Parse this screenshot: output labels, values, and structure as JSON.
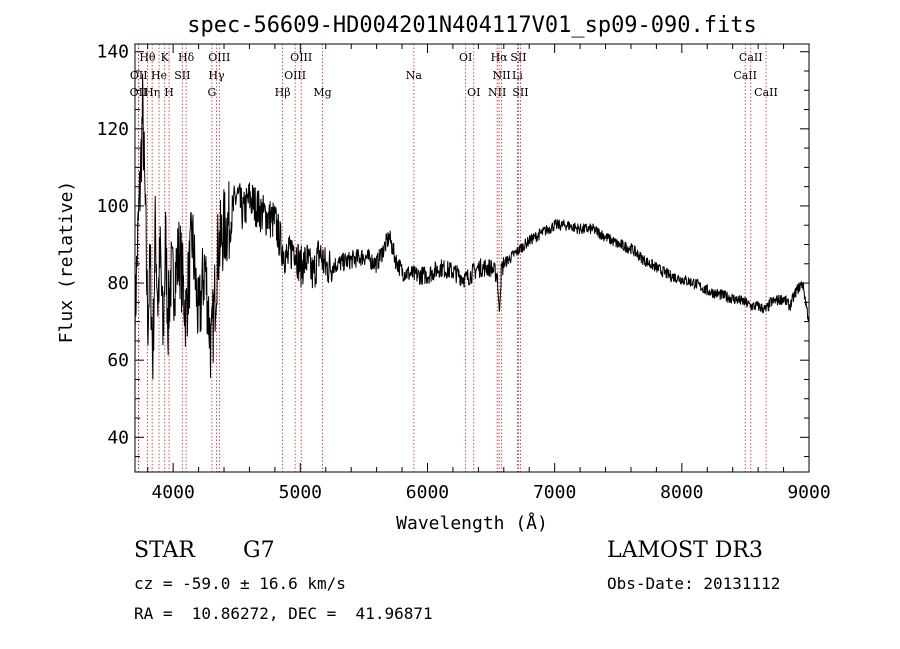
{
  "chart_data": {
    "type": "line",
    "title": "spec-56609-HD004201N404117V01_sp09-090.fits",
    "xlabel": "Wavelength (Å)",
    "ylabel": "Flux (relative)",
    "xlim": [
      3700,
      9000
    ],
    "ylim": [
      31,
      142
    ],
    "xticks": [
      4000,
      5000,
      6000,
      7000,
      8000,
      9000
    ],
    "yticks": [
      40,
      60,
      80,
      100,
      120,
      140
    ],
    "series": [
      {
        "name": "flux",
        "x": [
          3700,
          3720,
          3740,
          3760,
          3780,
          3800,
          3820,
          3840,
          3860,
          3880,
          3900,
          3920,
          3940,
          3960,
          3980,
          4000,
          4050,
          4100,
          4150,
          4200,
          4250,
          4300,
          4350,
          4400,
          4450,
          4500,
          4550,
          4600,
          4650,
          4700,
          4750,
          4800,
          4850,
          4900,
          4950,
          5000,
          5050,
          5100,
          5150,
          5200,
          5300,
          5400,
          5500,
          5600,
          5700,
          5750,
          5800,
          5900,
          6000,
          6100,
          6200,
          6300,
          6400,
          6500,
          6550,
          6563,
          6580,
          6600,
          6700,
          6800,
          6900,
          7000,
          7100,
          7200,
          7300,
          7400,
          7500,
          7600,
          7700,
          7800,
          7900,
          8000,
          8100,
          8200,
          8300,
          8400,
          8500,
          8542,
          8600,
          8662,
          8700,
          8800,
          8850,
          8900,
          8950,
          9000
        ],
        "y": [
          70,
          90,
          105,
          125,
          100,
          70,
          85,
          60,
          95,
          75,
          88,
          65,
          92,
          70,
          82,
          80,
          88,
          72,
          92,
          70,
          85,
          62,
          88,
          94,
          96,
          103,
          98,
          102,
          100,
          98,
          97,
          96,
          90,
          86,
          90,
          84,
          86,
          82,
          88,
          84,
          85,
          86,
          87,
          85,
          92,
          86,
          83,
          82,
          82,
          84,
          83,
          81,
          84,
          84,
          82,
          72,
          83,
          85,
          88,
          91,
          93,
          95,
          95,
          94,
          94,
          92,
          90,
          89,
          86,
          84,
          82,
          81,
          80,
          78,
          77,
          76,
          75,
          74,
          74,
          73,
          75,
          76,
          74,
          78,
          80,
          70
        ]
      }
    ],
    "lines": [
      {
        "label": "OII",
        "x": 3727,
        "row": 2
      },
      {
        "label": "OII",
        "x": 3729,
        "row": 1
      },
      {
        "label": "Hθ",
        "x": 3798,
        "row": 0
      },
      {
        "label": "Hη",
        "x": 3835,
        "row": 2
      },
      {
        "label": "He",
        "x": 3889,
        "row": 1
      },
      {
        "label": "K",
        "x": 3934,
        "row": 0
      },
      {
        "label": "H",
        "x": 3968,
        "row": 2
      },
      {
        "label": "SII",
        "x": 4072,
        "row": 1
      },
      {
        "label": "Hδ",
        "x": 4102,
        "row": 0
      },
      {
        "label": "G",
        "x": 4305,
        "row": 2
      },
      {
        "label": "Hγ",
        "x": 4341,
        "row": 1
      },
      {
        "label": "OIII",
        "x": 4363,
        "row": 0
      },
      {
        "label": "Hβ",
        "x": 4861,
        "row": 2
      },
      {
        "label": "OIII",
        "x": 4959,
        "row": 1
      },
      {
        "label": "OIII",
        "x": 5007,
        "row": 0
      },
      {
        "label": "Mg",
        "x": 5175,
        "row": 2
      },
      {
        "label": "Na",
        "x": 5893,
        "row": 1
      },
      {
        "label": "OI",
        "x": 6300,
        "row": 0
      },
      {
        "label": "OI",
        "x": 6364,
        "row": 2
      },
      {
        "label": "NII",
        "x": 6548,
        "row": 2
      },
      {
        "label": "Hα",
        "x": 6563,
        "row": 0
      },
      {
        "label": "NII",
        "x": 6583,
        "row": 1
      },
      {
        "label": "Li",
        "x": 6707,
        "row": 1
      },
      {
        "label": "SII",
        "x": 6716,
        "row": 0
      },
      {
        "label": "SII",
        "x": 6731,
        "row": 2
      },
      {
        "label": "CaII",
        "x": 8498,
        "row": 1
      },
      {
        "label": "CaII",
        "x": 8542,
        "row": 0
      },
      {
        "label": "CaII",
        "x": 8662,
        "row": 2
      }
    ],
    "line_color": "#cc2222",
    "spectrum_color": "#000000"
  },
  "info": {
    "class": "STAR",
    "subclass": "G7",
    "survey": "LAMOST DR3",
    "cz": "cz = -59.0 ± 16.6 km/s",
    "obsdate": "Obs-Date: 20131112",
    "coords": "RA =  10.86272, DEC =  41.96871"
  }
}
